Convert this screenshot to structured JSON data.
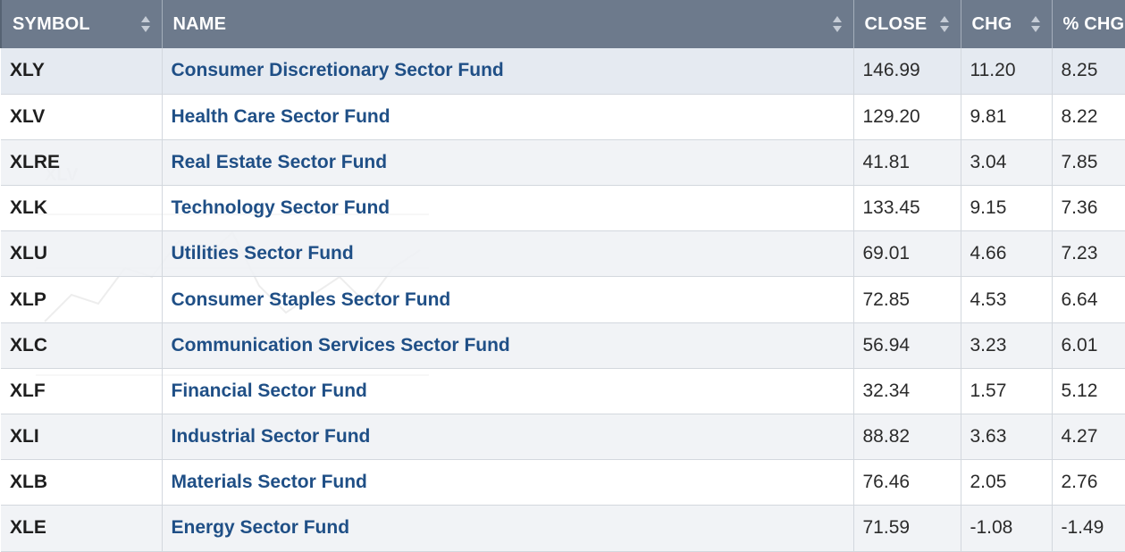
{
  "columns": [
    {
      "key": "symbol",
      "label": "SYMBOL",
      "sortable": true
    },
    {
      "key": "name",
      "label": "NAME",
      "sortable": true
    },
    {
      "key": "close",
      "label": "CLOSE",
      "sortable": true
    },
    {
      "key": "chg",
      "label": "CHG",
      "sortable": true
    },
    {
      "key": "pct_chg",
      "label": "% CHG",
      "sortable": false
    }
  ],
  "rows": [
    {
      "symbol": "XLY",
      "name": "Consumer Discretionary Sector Fund",
      "close": "146.99",
      "chg": "11.20",
      "pct_chg": "8.25"
    },
    {
      "symbol": "XLV",
      "name": "Health Care Sector Fund",
      "close": "129.20",
      "chg": "9.81",
      "pct_chg": "8.22"
    },
    {
      "symbol": "XLRE",
      "name": "Real Estate Sector Fund",
      "close": "41.81",
      "chg": "3.04",
      "pct_chg": "7.85"
    },
    {
      "symbol": "XLK",
      "name": "Technology Sector Fund",
      "close": "133.45",
      "chg": "9.15",
      "pct_chg": "7.36"
    },
    {
      "symbol": "XLU",
      "name": "Utilities Sector Fund",
      "close": "69.01",
      "chg": "4.66",
      "pct_chg": "7.23"
    },
    {
      "symbol": "XLP",
      "name": "Consumer Staples Sector Fund",
      "close": "72.85",
      "chg": "4.53",
      "pct_chg": "6.64"
    },
    {
      "symbol": "XLC",
      "name": "Communication Services Sector Fund",
      "close": "56.94",
      "chg": "3.23",
      "pct_chg": "6.01"
    },
    {
      "symbol": "XLF",
      "name": "Financial Sector Fund",
      "close": "32.34",
      "chg": "1.57",
      "pct_chg": "5.12"
    },
    {
      "symbol": "XLI",
      "name": "Industrial Sector Fund",
      "close": "88.82",
      "chg": "3.63",
      "pct_chg": "4.27"
    },
    {
      "symbol": "XLB",
      "name": "Materials Sector Fund",
      "close": "76.46",
      "chg": "2.05",
      "pct_chg": "2.76"
    },
    {
      "symbol": "XLE",
      "name": "Energy Sector Fund",
      "close": "71.59",
      "chg": "-1.08",
      "pct_chg": "-1.49"
    }
  ],
  "colors": {
    "header_bg": "#6d7a8c",
    "link": "#1f4f86",
    "row_alt": "#eef1f5"
  },
  "icons": {
    "sort": "sort-arrows-icon"
  }
}
